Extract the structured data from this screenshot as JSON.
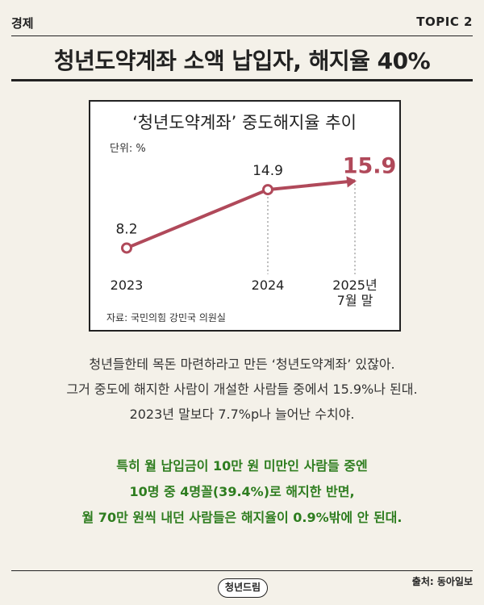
{
  "header": {
    "category": "경제",
    "topic": "TOPIC 2",
    "headline": "청년도약계좌 소액 납입자, 해지율 40%"
  },
  "chart_data": {
    "type": "line",
    "title": "‘청년도약계좌’ 중도해지율 추이",
    "unit_label": "단위: %",
    "categories": [
      "2023",
      "2024",
      "2025년 7월 말"
    ],
    "category_lines": [
      [
        "2023"
      ],
      [
        "2024"
      ],
      [
        "2025년",
        "7월 말"
      ]
    ],
    "values": [
      8.2,
      14.9,
      15.9
    ],
    "data_labels": [
      "8.2",
      "14.9",
      "15.9"
    ],
    "highlight_index": 2,
    "source": "자료: 국민의힘 강민국 의원실",
    "line_color": "#b0495a",
    "ylim": [
      0,
      20
    ]
  },
  "body": {
    "lines": [
      "청년들한테 목돈 마련하라고 만든 ‘청년도약계좌’ 있잖아.",
      "그거 중도에 해지한 사람이 개설한 사람들 중에서 15.9%나 된대.",
      "2023년 말보다 7.7%p나 늘어난 수치야."
    ],
    "highlight_lines": [
      "특히 월 납입금이 10만 원 미만인 사람들 중엔",
      "10명 중 4명꼴(39.4%)로 해지한 반면,",
      "월 70만 원씩 내던 사람들은 해지율이 0.9%밖에 안 된대."
    ]
  },
  "footer": {
    "logo": "청년드림",
    "source": "출처: 동아일보"
  }
}
